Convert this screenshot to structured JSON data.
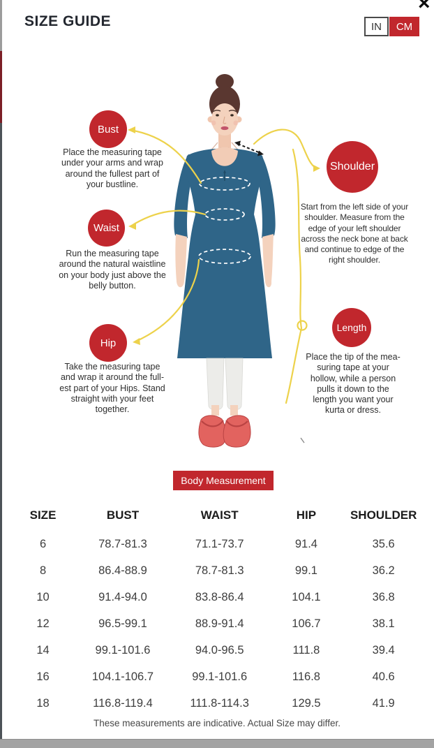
{
  "header": {
    "title": "SIZE GUIDE",
    "close_glyph": "×",
    "unit_toggle": {
      "in_label": "IN",
      "cm_label": "CM",
      "selected": "CM"
    }
  },
  "colors": {
    "accent_red": "#C1272D",
    "kurta_blue": "#2F6588",
    "tape_yellow": "#EDD24B"
  },
  "diagram": {
    "points": [
      {
        "id": "bust",
        "label": "Bust",
        "desc": "Place the measuring tape\nunder your arms and wrap\naround the fullest part of\nyour bustline."
      },
      {
        "id": "waist",
        "label": "Waist",
        "desc": "Run the measuring tape\naround the natural waistline\non your body just above the\nbelly button."
      },
      {
        "id": "hip",
        "label": "Hip",
        "desc": "Take the measuring tape\nand wrap it around the full-\nest part of your Hips. Stand\nstraight with your feet\ntogether."
      },
      {
        "id": "shoulder",
        "label": "Shoulder",
        "desc": "Start from the left side of your\nshoulder. Measure from the\nedge of your left shoulder\nacross the neck bone at back\nand continue to edge of the\nright shoulder."
      },
      {
        "id": "length",
        "label": "Length",
        "desc": "Place the tip of the mea-\nsuring tape at your\nhollow, while a person\npulls it down to the\nlength you want your\nkurta or dress."
      }
    ]
  },
  "section_button": {
    "label": "Body Measurement"
  },
  "table": {
    "headers": [
      "SIZE",
      "BUST",
      "WAIST",
      "HIP",
      "SHOULDER"
    ],
    "rows": [
      [
        "6",
        "78.7-81.3",
        "71.1-73.7",
        "91.4",
        "35.6"
      ],
      [
        "8",
        "86.4-88.9",
        "78.7-81.3",
        "99.1",
        "36.2"
      ],
      [
        "10",
        "91.4-94.0",
        "83.8-86.4",
        "104.1",
        "36.8"
      ],
      [
        "12",
        "96.5-99.1",
        "88.9-91.4",
        "106.7",
        "38.1"
      ],
      [
        "14",
        "99.1-101.6",
        "94.0-96.5",
        "111.8",
        "39.4"
      ],
      [
        "16",
        "104.1-106.7",
        "99.1-101.6",
        "116.8",
        "40.6"
      ],
      [
        "18",
        "116.8-119.4",
        "111.8-114.3",
        "129.5",
        "41.9"
      ]
    ]
  },
  "footer": {
    "note": "These measurements are indicative. Actual Size may differ."
  }
}
